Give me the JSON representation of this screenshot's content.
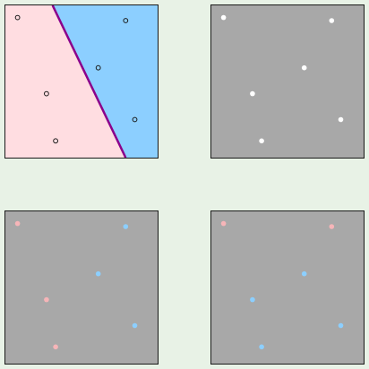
{
  "colors": {
    "background": "#e8f2e6",
    "region_a": "#ffdde1",
    "region_b": "#8ccfff",
    "boundary": "#8b008b",
    "panel_gray": "#a8a8a8",
    "point_white": "#ffffff",
    "point_pink": "#f6b5b8",
    "point_blue": "#8ccfff",
    "point_outline": "#1a1a1a"
  },
  "panels": [
    {
      "id": "panel-a",
      "kind": "classified",
      "boundary_line": {
        "from": [
          0.31,
          0.0
        ],
        "to": [
          0.79,
          1.0
        ]
      },
      "points": [
        {
          "x": 0.08,
          "y": 0.08,
          "class": "a"
        },
        {
          "x": 0.79,
          "y": 0.1,
          "class": "b"
        },
        {
          "x": 0.61,
          "y": 0.41,
          "class": "b"
        },
        {
          "x": 0.27,
          "y": 0.58,
          "class": "a"
        },
        {
          "x": 0.85,
          "y": 0.75,
          "class": "b"
        },
        {
          "x": 0.33,
          "y": 0.89,
          "class": "a"
        }
      ]
    },
    {
      "id": "panel-b",
      "kind": "unlabeled",
      "points": [
        {
          "x": 0.08,
          "y": 0.08
        },
        {
          "x": 0.79,
          "y": 0.1
        },
        {
          "x": 0.61,
          "y": 0.41
        },
        {
          "x": 0.27,
          "y": 0.58
        },
        {
          "x": 0.85,
          "y": 0.75
        },
        {
          "x": 0.33,
          "y": 0.89
        }
      ]
    },
    {
      "id": "panel-c",
      "kind": "labeled",
      "points": [
        {
          "x": 0.08,
          "y": 0.08,
          "class": "a"
        },
        {
          "x": 0.79,
          "y": 0.1,
          "class": "b"
        },
        {
          "x": 0.61,
          "y": 0.41,
          "class": "b"
        },
        {
          "x": 0.27,
          "y": 0.58,
          "class": "a"
        },
        {
          "x": 0.85,
          "y": 0.75,
          "class": "b"
        },
        {
          "x": 0.33,
          "y": 0.89,
          "class": "a"
        }
      ]
    },
    {
      "id": "panel-d",
      "kind": "labeled",
      "points": [
        {
          "x": 0.08,
          "y": 0.08,
          "class": "a"
        },
        {
          "x": 0.79,
          "y": 0.1,
          "class": "a"
        },
        {
          "x": 0.61,
          "y": 0.41,
          "class": "b"
        },
        {
          "x": 0.27,
          "y": 0.58,
          "class": "b"
        },
        {
          "x": 0.85,
          "y": 0.75,
          "class": "b"
        },
        {
          "x": 0.33,
          "y": 0.89,
          "class": "b"
        }
      ]
    }
  ]
}
